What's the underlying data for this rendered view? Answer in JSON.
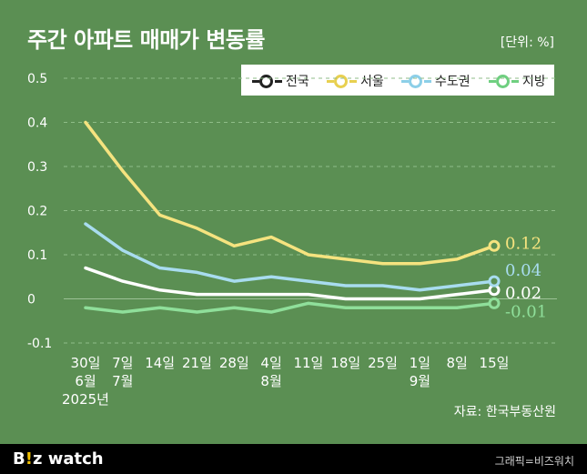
{
  "title": "주간 아파트 매매가 변동률",
  "unit": "[단위: %]",
  "source": "자료: 한국부동산원",
  "footer": {
    "brand_b": "B",
    "brand_accent": "!",
    "brand_z": "z",
    "brand_watch": " watch",
    "credit": "그래픽=비즈워치"
  },
  "colors": {
    "background": "#5b8f53",
    "national": "#ffffff",
    "seoul": "#f5e37f",
    "capital": "#a8dcef",
    "provinces": "#8fdf9a"
  },
  "chart_data": {
    "type": "line",
    "title": "주간 아파트 매매가 변동률",
    "ylim": [
      -0.1,
      0.5
    ],
    "yticks": [
      "-0.1",
      "0",
      "0.1",
      "0.2",
      "0.3",
      "0.4",
      "0.5"
    ],
    "ytick_values": [
      -0.1,
      0,
      0.1,
      0.2,
      0.3,
      0.4,
      0.5
    ],
    "categories": [
      [
        "30일",
        "6월",
        "2025년"
      ],
      [
        "7일",
        "7월"
      ],
      [
        "14일"
      ],
      [
        "21일"
      ],
      [
        "28일"
      ],
      [
        "4일",
        "8월"
      ],
      [
        "11일"
      ],
      [
        "18일"
      ],
      [
        "25일"
      ],
      [
        "1일",
        "9월"
      ],
      [
        "8일"
      ],
      [
        "15일"
      ]
    ],
    "series": [
      {
        "name": "전국",
        "key": "national",
        "values": [
          0.07,
          0.04,
          0.02,
          0.01,
          0.01,
          0.01,
          0.01,
          0.0,
          0.0,
          0.0,
          0.01,
          0.02
        ],
        "end_label": "0.02"
      },
      {
        "name": "서울",
        "key": "seoul",
        "values": [
          0.4,
          0.29,
          0.19,
          0.16,
          0.12,
          0.14,
          0.1,
          0.09,
          0.08,
          0.08,
          0.09,
          0.12
        ],
        "end_label": "0.12"
      },
      {
        "name": "수도권",
        "key": "capital",
        "values": [
          0.17,
          0.11,
          0.07,
          0.06,
          0.04,
          0.05,
          0.04,
          0.03,
          0.03,
          0.02,
          0.03,
          0.04
        ],
        "end_label": "0.04"
      },
      {
        "name": "지방",
        "key": "provinces",
        "values": [
          -0.02,
          -0.03,
          -0.02,
          -0.03,
          -0.02,
          -0.03,
          -0.01,
          -0.02,
          -0.02,
          -0.02,
          -0.02,
          -0.01
        ],
        "end_label": "-0.01"
      }
    ]
  }
}
